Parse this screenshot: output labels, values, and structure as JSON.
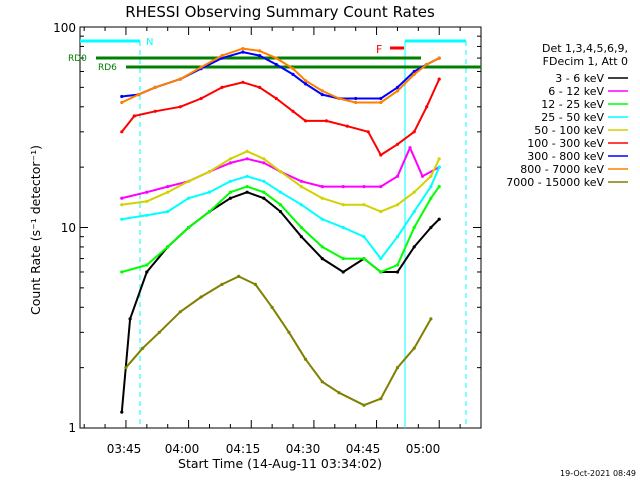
{
  "chart_data": {
    "type": "line",
    "title": "RHESSI Observing Summary Count Rates",
    "xlabel": "Start Time (14-Aug-11 03:34:02)",
    "ylabel": "Count Rate (s⁻¹ detector⁻¹)",
    "yscale": "log",
    "ylim": [
      1,
      100
    ],
    "xlim": [
      "03:34",
      "05:10"
    ],
    "x_ticks": [
      "03:45",
      "04:00",
      "04:15",
      "04:30",
      "04:45",
      "05:00"
    ],
    "y_ticks": [
      "1",
      "10",
      "100"
    ],
    "timestamp": "19-Oct-2021 08:49",
    "legend": {
      "header": [
        "Det 1,3,4,5,6,9,",
        "FDecim 1, Att 0"
      ],
      "placement": "right"
    },
    "series": [
      {
        "name": "3 - 6 keV",
        "color": "#000000",
        "points": [
          [
            "03:44",
            1.2
          ],
          [
            "03:46",
            3.5
          ],
          [
            "03:50",
            6
          ],
          [
            "03:55",
            8
          ],
          [
            "04:00",
            10
          ],
          [
            "04:05",
            12
          ],
          [
            "04:10",
            14
          ],
          [
            "04:14",
            15
          ],
          [
            "04:18",
            14
          ],
          [
            "04:22",
            12
          ],
          [
            "04:27",
            9
          ],
          [
            "04:32",
            7
          ],
          [
            "04:37",
            6
          ],
          [
            "04:42",
            7
          ],
          [
            "04:46",
            6
          ],
          [
            "04:50",
            6
          ],
          [
            "04:54",
            8
          ],
          [
            "04:58",
            10
          ],
          [
            "05:00",
            11
          ]
        ]
      },
      {
        "name": "6 - 12 keV",
        "color": "#ff00ff",
        "points": [
          [
            "03:44",
            14
          ],
          [
            "03:50",
            15
          ],
          [
            "03:55",
            16
          ],
          [
            "04:00",
            17
          ],
          [
            "04:05",
            19
          ],
          [
            "04:10",
            21
          ],
          [
            "04:14",
            22
          ],
          [
            "04:18",
            21
          ],
          [
            "04:22",
            19
          ],
          [
            "04:27",
            17
          ],
          [
            "04:32",
            16
          ],
          [
            "04:37",
            16
          ],
          [
            "04:42",
            16
          ],
          [
            "04:46",
            16
          ],
          [
            "04:50",
            18
          ],
          [
            "04:53",
            25
          ],
          [
            "04:56",
            18
          ],
          [
            "05:00",
            20
          ]
        ]
      },
      {
        "name": "12 - 25 keV",
        "color": "#00ff00",
        "points": [
          [
            "03:44",
            6
          ],
          [
            "03:50",
            6.5
          ],
          [
            "03:55",
            8
          ],
          [
            "04:00",
            10
          ],
          [
            "04:05",
            12
          ],
          [
            "04:10",
            15
          ],
          [
            "04:14",
            16
          ],
          [
            "04:18",
            15
          ],
          [
            "04:22",
            13
          ],
          [
            "04:27",
            10
          ],
          [
            "04:32",
            8
          ],
          [
            "04:37",
            7
          ],
          [
            "04:42",
            7
          ],
          [
            "04:46",
            6
          ],
          [
            "04:50",
            6.5
          ],
          [
            "04:54",
            10
          ],
          [
            "04:58",
            14
          ],
          [
            "05:00",
            16
          ]
        ]
      },
      {
        "name": "25 - 50 keV",
        "color": "#00ffff",
        "points": [
          [
            "03:44",
            11
          ],
          [
            "03:50",
            11.5
          ],
          [
            "03:55",
            12
          ],
          [
            "04:00",
            14
          ],
          [
            "04:05",
            15
          ],
          [
            "04:10",
            17
          ],
          [
            "04:14",
            18
          ],
          [
            "04:18",
            17
          ],
          [
            "04:22",
            15
          ],
          [
            "04:27",
            13
          ],
          [
            "04:32",
            11
          ],
          [
            "04:37",
            10
          ],
          [
            "04:42",
            9
          ],
          [
            "04:46",
            7
          ],
          [
            "04:50",
            9
          ],
          [
            "04:54",
            12
          ],
          [
            "04:58",
            16
          ],
          [
            "05:00",
            20
          ]
        ]
      },
      {
        "name": "50 - 100 keV",
        "color": "#d2d200",
        "points": [
          [
            "03:44",
            13
          ],
          [
            "03:50",
            13.5
          ],
          [
            "03:55",
            15
          ],
          [
            "04:00",
            17
          ],
          [
            "04:05",
            19
          ],
          [
            "04:10",
            22
          ],
          [
            "04:14",
            24
          ],
          [
            "04:18",
            22
          ],
          [
            "04:22",
            19
          ],
          [
            "04:27",
            16
          ],
          [
            "04:32",
            14
          ],
          [
            "04:37",
            13
          ],
          [
            "04:42",
            13
          ],
          [
            "04:46",
            12
          ],
          [
            "04:50",
            13
          ],
          [
            "04:54",
            15
          ],
          [
            "04:58",
            18
          ],
          [
            "05:00",
            22
          ]
        ]
      },
      {
        "name": "100 - 300 keV",
        "color": "#ff0000",
        "points": [
          [
            "03:44",
            30
          ],
          [
            "03:47",
            36
          ],
          [
            "03:52",
            38
          ],
          [
            "03:58",
            40
          ],
          [
            "04:03",
            44
          ],
          [
            "04:08",
            50
          ],
          [
            "04:13",
            53
          ],
          [
            "04:17",
            50
          ],
          [
            "04:21",
            44
          ],
          [
            "04:25",
            38
          ],
          [
            "04:28",
            34
          ],
          [
            "04:33",
            34
          ],
          [
            "04:38",
            32
          ],
          [
            "04:43",
            30
          ],
          [
            "04:46",
            23
          ],
          [
            "04:50",
            26
          ],
          [
            "04:54",
            30
          ],
          [
            "04:57",
            40
          ],
          [
            "05:00",
            55
          ]
        ]
      },
      {
        "name": "300 - 800 keV",
        "color": "#0000ff",
        "points": [
          [
            "03:44",
            45
          ],
          [
            "03:48",
            46
          ],
          [
            "03:52",
            50
          ],
          [
            "03:58",
            55
          ],
          [
            "04:03",
            62
          ],
          [
            "04:08",
            70
          ],
          [
            "04:13",
            75
          ],
          [
            "04:17",
            72
          ],
          [
            "04:21",
            65
          ],
          [
            "04:25",
            58
          ],
          [
            "04:28",
            52
          ],
          [
            "04:32",
            46
          ],
          [
            "04:36",
            44
          ],
          [
            "04:40",
            44
          ],
          [
            "04:46",
            44
          ],
          [
            "04:50",
            50
          ],
          [
            "04:54",
            60
          ],
          [
            "04:57",
            65
          ],
          [
            "05:00",
            70
          ]
        ]
      },
      {
        "name": "800 - 7000 keV",
        "color": "#ff8000",
        "points": [
          [
            "03:44",
            42
          ],
          [
            "03:48",
            46
          ],
          [
            "03:52",
            50
          ],
          [
            "03:58",
            55
          ],
          [
            "04:03",
            63
          ],
          [
            "04:08",
            72
          ],
          [
            "04:13",
            78
          ],
          [
            "04:17",
            76
          ],
          [
            "04:21",
            70
          ],
          [
            "04:25",
            62
          ],
          [
            "04:28",
            54
          ],
          [
            "04:32",
            48
          ],
          [
            "04:36",
            44
          ],
          [
            "04:40",
            42
          ],
          [
            "04:46",
            42
          ],
          [
            "04:50",
            48
          ],
          [
            "04:54",
            58
          ],
          [
            "04:57",
            65
          ],
          [
            "05:00",
            70
          ]
        ]
      },
      {
        "name": "7000 - 15000 keV",
        "color": "#808000",
        "points": [
          [
            "03:45",
            2
          ],
          [
            "03:49",
            2.5
          ],
          [
            "03:53",
            3
          ],
          [
            "03:58",
            3.8
          ],
          [
            "04:03",
            4.5
          ],
          [
            "04:08",
            5.2
          ],
          [
            "04:12",
            5.7
          ],
          [
            "04:16",
            5.2
          ],
          [
            "04:20",
            4
          ],
          [
            "04:24",
            3
          ],
          [
            "04:28",
            2.2
          ],
          [
            "04:32",
            1.7
          ],
          [
            "04:36",
            1.5
          ],
          [
            "04:42",
            1.3
          ],
          [
            "04:46",
            1.4
          ],
          [
            "04:50",
            2
          ],
          [
            "04:54",
            2.5
          ],
          [
            "04:58",
            3.5
          ]
        ]
      }
    ],
    "annotations": {
      "n_label": "N",
      "f_label": "F",
      "rd0_label": "RD0",
      "rd6_label": "RD6"
    }
  }
}
